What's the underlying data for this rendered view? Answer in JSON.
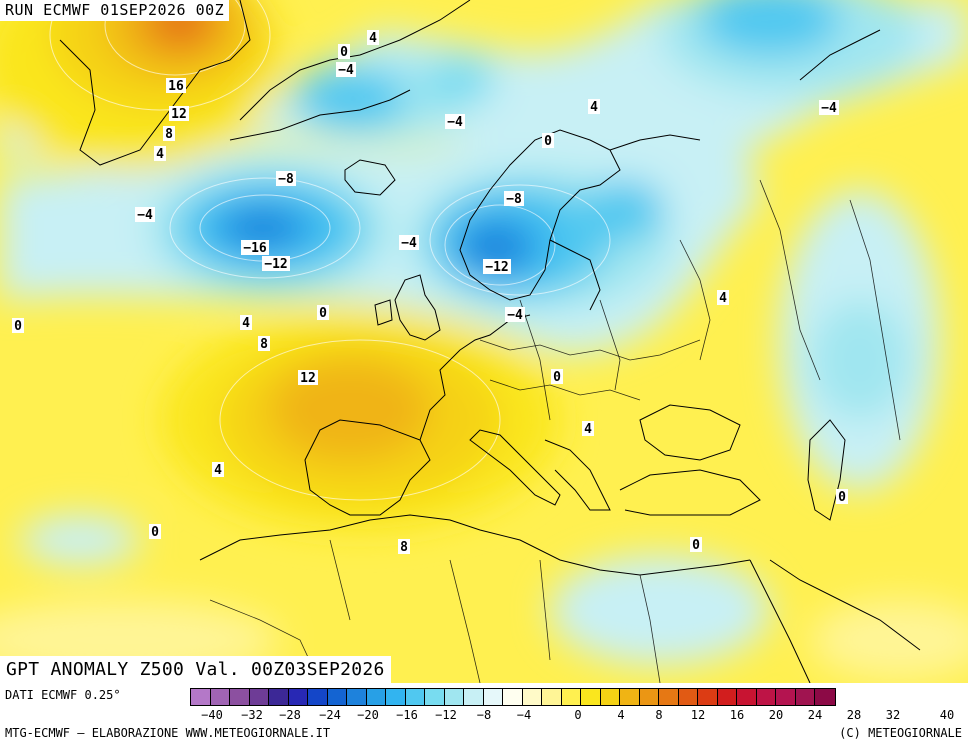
{
  "header": {
    "run": "RUN ECMWF 01SEP2026 00Z"
  },
  "title": {
    "valid": "GPT ANOMALY Z500 Val. 00Z03SEP2026"
  },
  "footer": {
    "data_source": "DATI ECMWF 0.25°",
    "credit_left": "MTG-ECMWF – ELABORAZIONE WWW.METEOGIORNALE.IT",
    "credit_right": "(C) METEOGIORNALE"
  },
  "legend": {
    "tick_labels": [
      "−40",
      "−32",
      "−28",
      "−24",
      "−20",
      "−16",
      "−12",
      "−8",
      "−4",
      "0",
      "4",
      "8",
      "12",
      "16",
      "20",
      "24",
      "28",
      "32",
      "40"
    ],
    "colors": [
      "#b478c8",
      "#a064b4",
      "#8c50a0",
      "#6e3c96",
      "#3c2896",
      "#2828b4",
      "#1446c8",
      "#1464d2",
      "#1e82dc",
      "#28a0e6",
      "#32b4f0",
      "#50c8f0",
      "#78dcf0",
      "#a0e6f0",
      "#c8f0f5",
      "#e6f8fa",
      "#fffff0",
      "#fffac8",
      "#fff596",
      "#fff050",
      "#fae61e",
      "#f5d214",
      "#f0b414",
      "#eb9614",
      "#e67814",
      "#e15a14",
      "#dc3c14",
      "#d21e1e",
      "#c81432",
      "#be1446",
      "#b41450",
      "#a01450",
      "#8c0a46"
    ]
  },
  "contour_labels": [
    {
      "text": "16"
    },
    {
      "text": "12"
    },
    {
      "text": "8"
    },
    {
      "text": "4"
    },
    {
      "text": "0"
    },
    {
      "text": "4"
    },
    {
      "text": "−4"
    },
    {
      "text": "−4"
    },
    {
      "text": "4"
    },
    {
      "text": "−4"
    },
    {
      "text": "0"
    },
    {
      "text": "−8"
    },
    {
      "text": "−4"
    },
    {
      "text": "−16"
    },
    {
      "text": "−12"
    },
    {
      "text": "−4"
    },
    {
      "text": "−8"
    },
    {
      "text": "−12"
    },
    {
      "text": "−4"
    },
    {
      "text": "0"
    },
    {
      "text": "4"
    },
    {
      "text": "8"
    },
    {
      "text": "0"
    },
    {
      "text": "12"
    },
    {
      "text": "4"
    },
    {
      "text": "0"
    },
    {
      "text": "4"
    },
    {
      "text": "0"
    },
    {
      "text": "4"
    },
    {
      "text": "0"
    },
    {
      "text": "8"
    },
    {
      "text": "0"
    }
  ]
}
